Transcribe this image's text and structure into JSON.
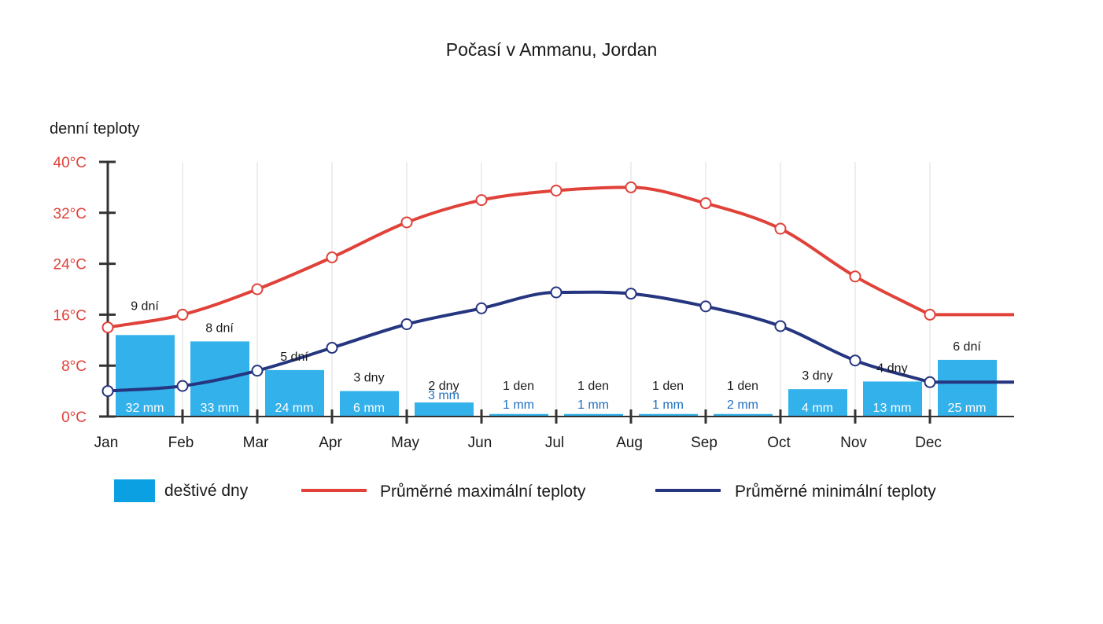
{
  "chart_data": {
    "type": "bar+line",
    "title": "Počasí v Ammanu, Jordan",
    "ylabel": "denní teploty",
    "y_ticks": [
      "0°C",
      "8°C",
      "16°C",
      "24°C",
      "32°C",
      "40°C"
    ],
    "y_tick_values": [
      0,
      8,
      16,
      24,
      32,
      40
    ],
    "ylim": [
      0,
      40
    ],
    "categories": [
      "Jan",
      "Feb",
      "Mar",
      "Apr",
      "May",
      "Jun",
      "Jul",
      "Aug",
      "Sep",
      "Oct",
      "Nov",
      "Dec"
    ],
    "grid": "vertical",
    "series": [
      {
        "name": "Průměrné maximální teploty",
        "kind": "line",
        "color": "#e0423a",
        "values": [
          14,
          16,
          20,
          25,
          30.5,
          34,
          35.5,
          36,
          33.5,
          29.5,
          22,
          16
        ]
      },
      {
        "name": "Průměrné minimální teploty",
        "kind": "line",
        "color": "#25357f",
        "values": [
          4,
          4.8,
          7.2,
          10.8,
          14.5,
          17,
          19.5,
          19.3,
          17.3,
          14.2,
          8.8,
          5.4
        ]
      }
    ],
    "rain": {
      "name": "deštivé dny",
      "color": "#33b1ea",
      "legend_color": "#0aa0e2",
      "bar_values": [
        12.8,
        11.8,
        7.3,
        4,
        2.2,
        0.4,
        0.4,
        0.4,
        0.4,
        4.3,
        5.5,
        8.9
      ],
      "days_labels": [
        "9 dní",
        "8 dní",
        "5 dní",
        "3 dny",
        "2 dny",
        "1 den",
        "1 den",
        "1 den",
        "1 den",
        "3 dny",
        "4 dny",
        "6 dní"
      ],
      "mm_labels": [
        "32 mm",
        "33 mm",
        "24 mm",
        "6 mm",
        "3 mm",
        "1 mm",
        "1 mm",
        "1 mm",
        "2 mm",
        "4 mm",
        "13 mm",
        "25 mm"
      ]
    },
    "legend": {
      "rain": "deštivé dny",
      "max": "Průměrné maximální teploty",
      "min": "Průměrné minimální teploty"
    }
  }
}
